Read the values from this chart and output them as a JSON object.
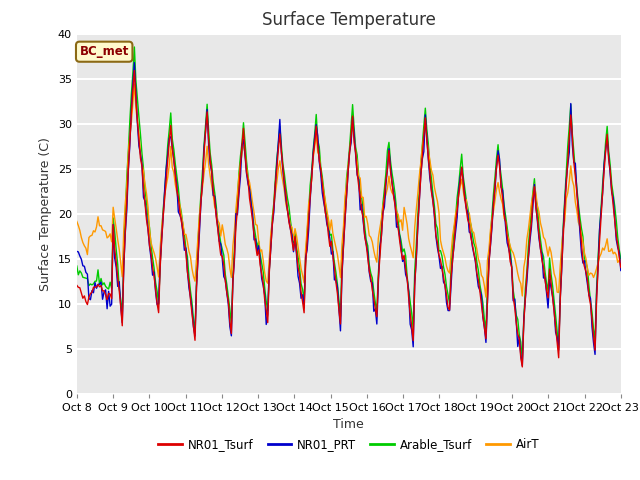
{
  "title": "Surface Temperature",
  "ylabel": "Surface Temperature (C)",
  "xlabel": "Time",
  "annotation": "BC_met",
  "ylim": [
    0,
    40
  ],
  "yticks": [
    0,
    5,
    10,
    15,
    20,
    25,
    30,
    35,
    40
  ],
  "xlabels": [
    "Oct 8",
    "Oct 9",
    "Oct 10",
    "Oct 11",
    "Oct 12",
    "Oct 13",
    "Oct 14",
    "Oct 15",
    "Oct 16",
    "Oct 17",
    "Oct 18",
    "Oct 19",
    "Oct 20",
    "Oct 21",
    "Oct 22",
    "Oct 23"
  ],
  "colors": {
    "NR01_Tsurf": "#dd0000",
    "NR01_PRT": "#0000cc",
    "Arable_Tsurf": "#00cc00",
    "AirT": "#ff9900"
  },
  "bg_color": "#e8e8e8",
  "line_width": 1.0,
  "title_fontsize": 12,
  "label_fontsize": 9,
  "tick_fontsize": 8
}
